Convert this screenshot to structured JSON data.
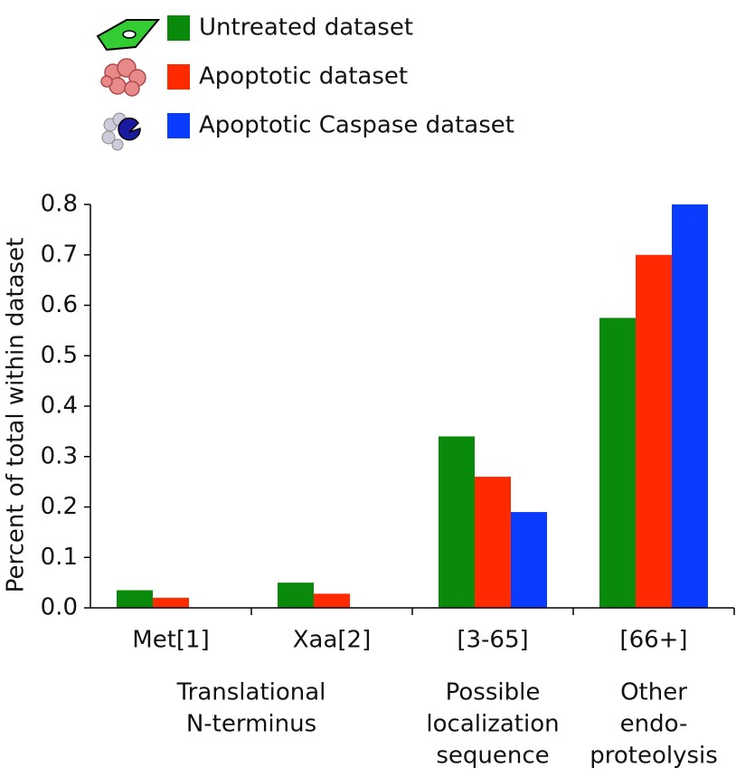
{
  "chart_data": {
    "type": "bar",
    "categories": [
      "Met[1]",
      "Xaa[2]",
      "[3-65]",
      "[66+]"
    ],
    "category_groups": [
      {
        "lines": [
          "Translational",
          "N-terminus"
        ],
        "span": [
          0,
          1
        ]
      },
      {
        "lines": [
          "Possible",
          "localization",
          "sequence"
        ],
        "span": [
          2,
          2
        ]
      },
      {
        "lines": [
          "Other",
          "endo-",
          "proteolysis"
        ],
        "span": [
          3,
          3
        ]
      }
    ],
    "y_label": "Percent of total within dataset",
    "series": [
      {
        "name": "Untreated dataset",
        "color": "#0a8a0a",
        "values": [
          0.035,
          0.05,
          0.34,
          0.575
        ]
      },
      {
        "name": "Apoptotic dataset",
        "color": "#ff2a00",
        "values": [
          0.02,
          0.028,
          0.26,
          0.7
        ]
      },
      {
        "name": "Apoptotic Caspase dataset",
        "color": "#0a3cff",
        "values": [
          0,
          0,
          0.19,
          0.8
        ]
      }
    ],
    "ylim": [
      0,
      0.8
    ],
    "yticks": [
      {
        "value": 0,
        "label": "0.0"
      },
      0.1,
      0.2,
      0.3,
      0.4,
      0.5,
      0.6,
      0.7,
      0.8
    ],
    "grid": false,
    "legend": "top-left"
  }
}
